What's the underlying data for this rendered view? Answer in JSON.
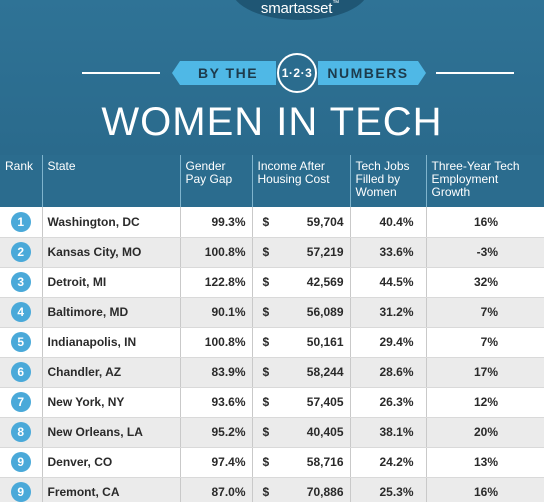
{
  "brand": {
    "logo_text": "smartasset",
    "logo_mark": "™"
  },
  "banner": {
    "left": "BY THE",
    "badge": "1·2·3",
    "right": "NUMBERS"
  },
  "title": "WOMEN IN TECH",
  "table": {
    "columns": [
      "Rank",
      "State",
      "Gender Pay Gap",
      "Income After Housing Cost",
      "Tech Jobs Filled by Women",
      "Three-Year Tech Employment Growth"
    ],
    "rows": [
      {
        "rank": "1",
        "state": "Washington, DC",
        "gap": "99.3%",
        "income_symbol": "$",
        "income": "59,704",
        "jobs": "40.4%",
        "growth": "16%"
      },
      {
        "rank": "2",
        "state": "Kansas City, MO",
        "gap": "100.8%",
        "income_symbol": "$",
        "income": "57,219",
        "jobs": "33.6%",
        "growth": "-3%"
      },
      {
        "rank": "3",
        "state": "Detroit, MI",
        "gap": "122.8%",
        "income_symbol": "$",
        "income": "42,569",
        "jobs": "44.5%",
        "growth": "32%"
      },
      {
        "rank": "4",
        "state": "Baltimore, MD",
        "gap": "90.1%",
        "income_symbol": "$",
        "income": "56,089",
        "jobs": "31.2%",
        "growth": "7%"
      },
      {
        "rank": "5",
        "state": "Indianapolis, IN",
        "gap": "100.8%",
        "income_symbol": "$",
        "income": "50,161",
        "jobs": "29.4%",
        "growth": "7%"
      },
      {
        "rank": "6",
        "state": "Chandler, AZ",
        "gap": "83.9%",
        "income_symbol": "$",
        "income": "58,244",
        "jobs": "28.6%",
        "growth": "17%"
      },
      {
        "rank": "7",
        "state": "New York, NY",
        "gap": "93.6%",
        "income_symbol": "$",
        "income": "57,405",
        "jobs": "26.3%",
        "growth": "12%"
      },
      {
        "rank": "8",
        "state": "New Orleans, LA",
        "gap": "95.2%",
        "income_symbol": "$",
        "income": "40,405",
        "jobs": "38.1%",
        "growth": "20%"
      },
      {
        "rank": "9",
        "state": "Denver, CO",
        "gap": "97.4%",
        "income_symbol": "$",
        "income": "58,716",
        "jobs": "24.2%",
        "growth": "13%"
      },
      {
        "rank": "9",
        "state": "Fremont, CA",
        "gap": "87.0%",
        "income_symbol": "$",
        "income": "70,886",
        "jobs": "25.3%",
        "growth": "16%"
      }
    ]
  },
  "colors": {
    "header_bg": "#2b6c8e",
    "ribbon": "#4fb8e6",
    "rank_badge": "#4aa9d9",
    "row_alt": "#ebebeb"
  }
}
